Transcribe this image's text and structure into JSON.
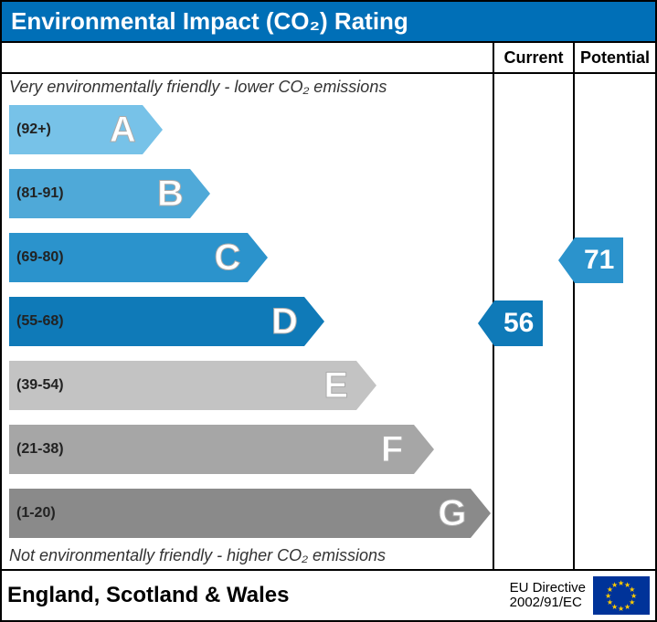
{
  "title": "Environmental Impact (CO₂) Rating",
  "columns": {
    "current": "Current",
    "potential": "Potential"
  },
  "captions": {
    "top": "Very environmentally friendly - lower CO₂ emissions",
    "bottom": "Not environmentally friendly - higher CO₂ emissions"
  },
  "chart": {
    "bands": [
      {
        "letter": "A",
        "range": "(92+)",
        "color": "#77c2e8",
        "width_pct": 28
      },
      {
        "letter": "B",
        "range": "(81-91)",
        "color": "#4fa9d8",
        "width_pct": 38
      },
      {
        "letter": "C",
        "range": "(69-80)",
        "color": "#2b93cc",
        "width_pct": 50
      },
      {
        "letter": "D",
        "range": "(55-68)",
        "color": "#0f7ab8",
        "width_pct": 62
      },
      {
        "letter": "E",
        "range": "(39-54)",
        "color": "#c3c3c3",
        "width_pct": 73
      },
      {
        "letter": "F",
        "range": "(21-38)",
        "color": "#a6a6a6",
        "width_pct": 85
      },
      {
        "letter": "G",
        "range": "(1-20)",
        "color": "#8a8a8a",
        "width_pct": 97
      }
    ],
    "marker_current": {
      "value": "56",
      "band_index": 3,
      "color": "#0f7ab8"
    },
    "marker_potential": {
      "value": "71",
      "band_index": 2,
      "color": "#2b93cc"
    }
  },
  "footer": {
    "region": "England, Scotland & Wales",
    "directive_line1": "EU Directive",
    "directive_line2": "2002/91/EC"
  },
  "style": {
    "title_bg": "#006fb7",
    "title_fg": "#ffffff",
    "border_color": "#000000",
    "flag_bg": "#003399",
    "flag_star": "#ffcc00"
  }
}
